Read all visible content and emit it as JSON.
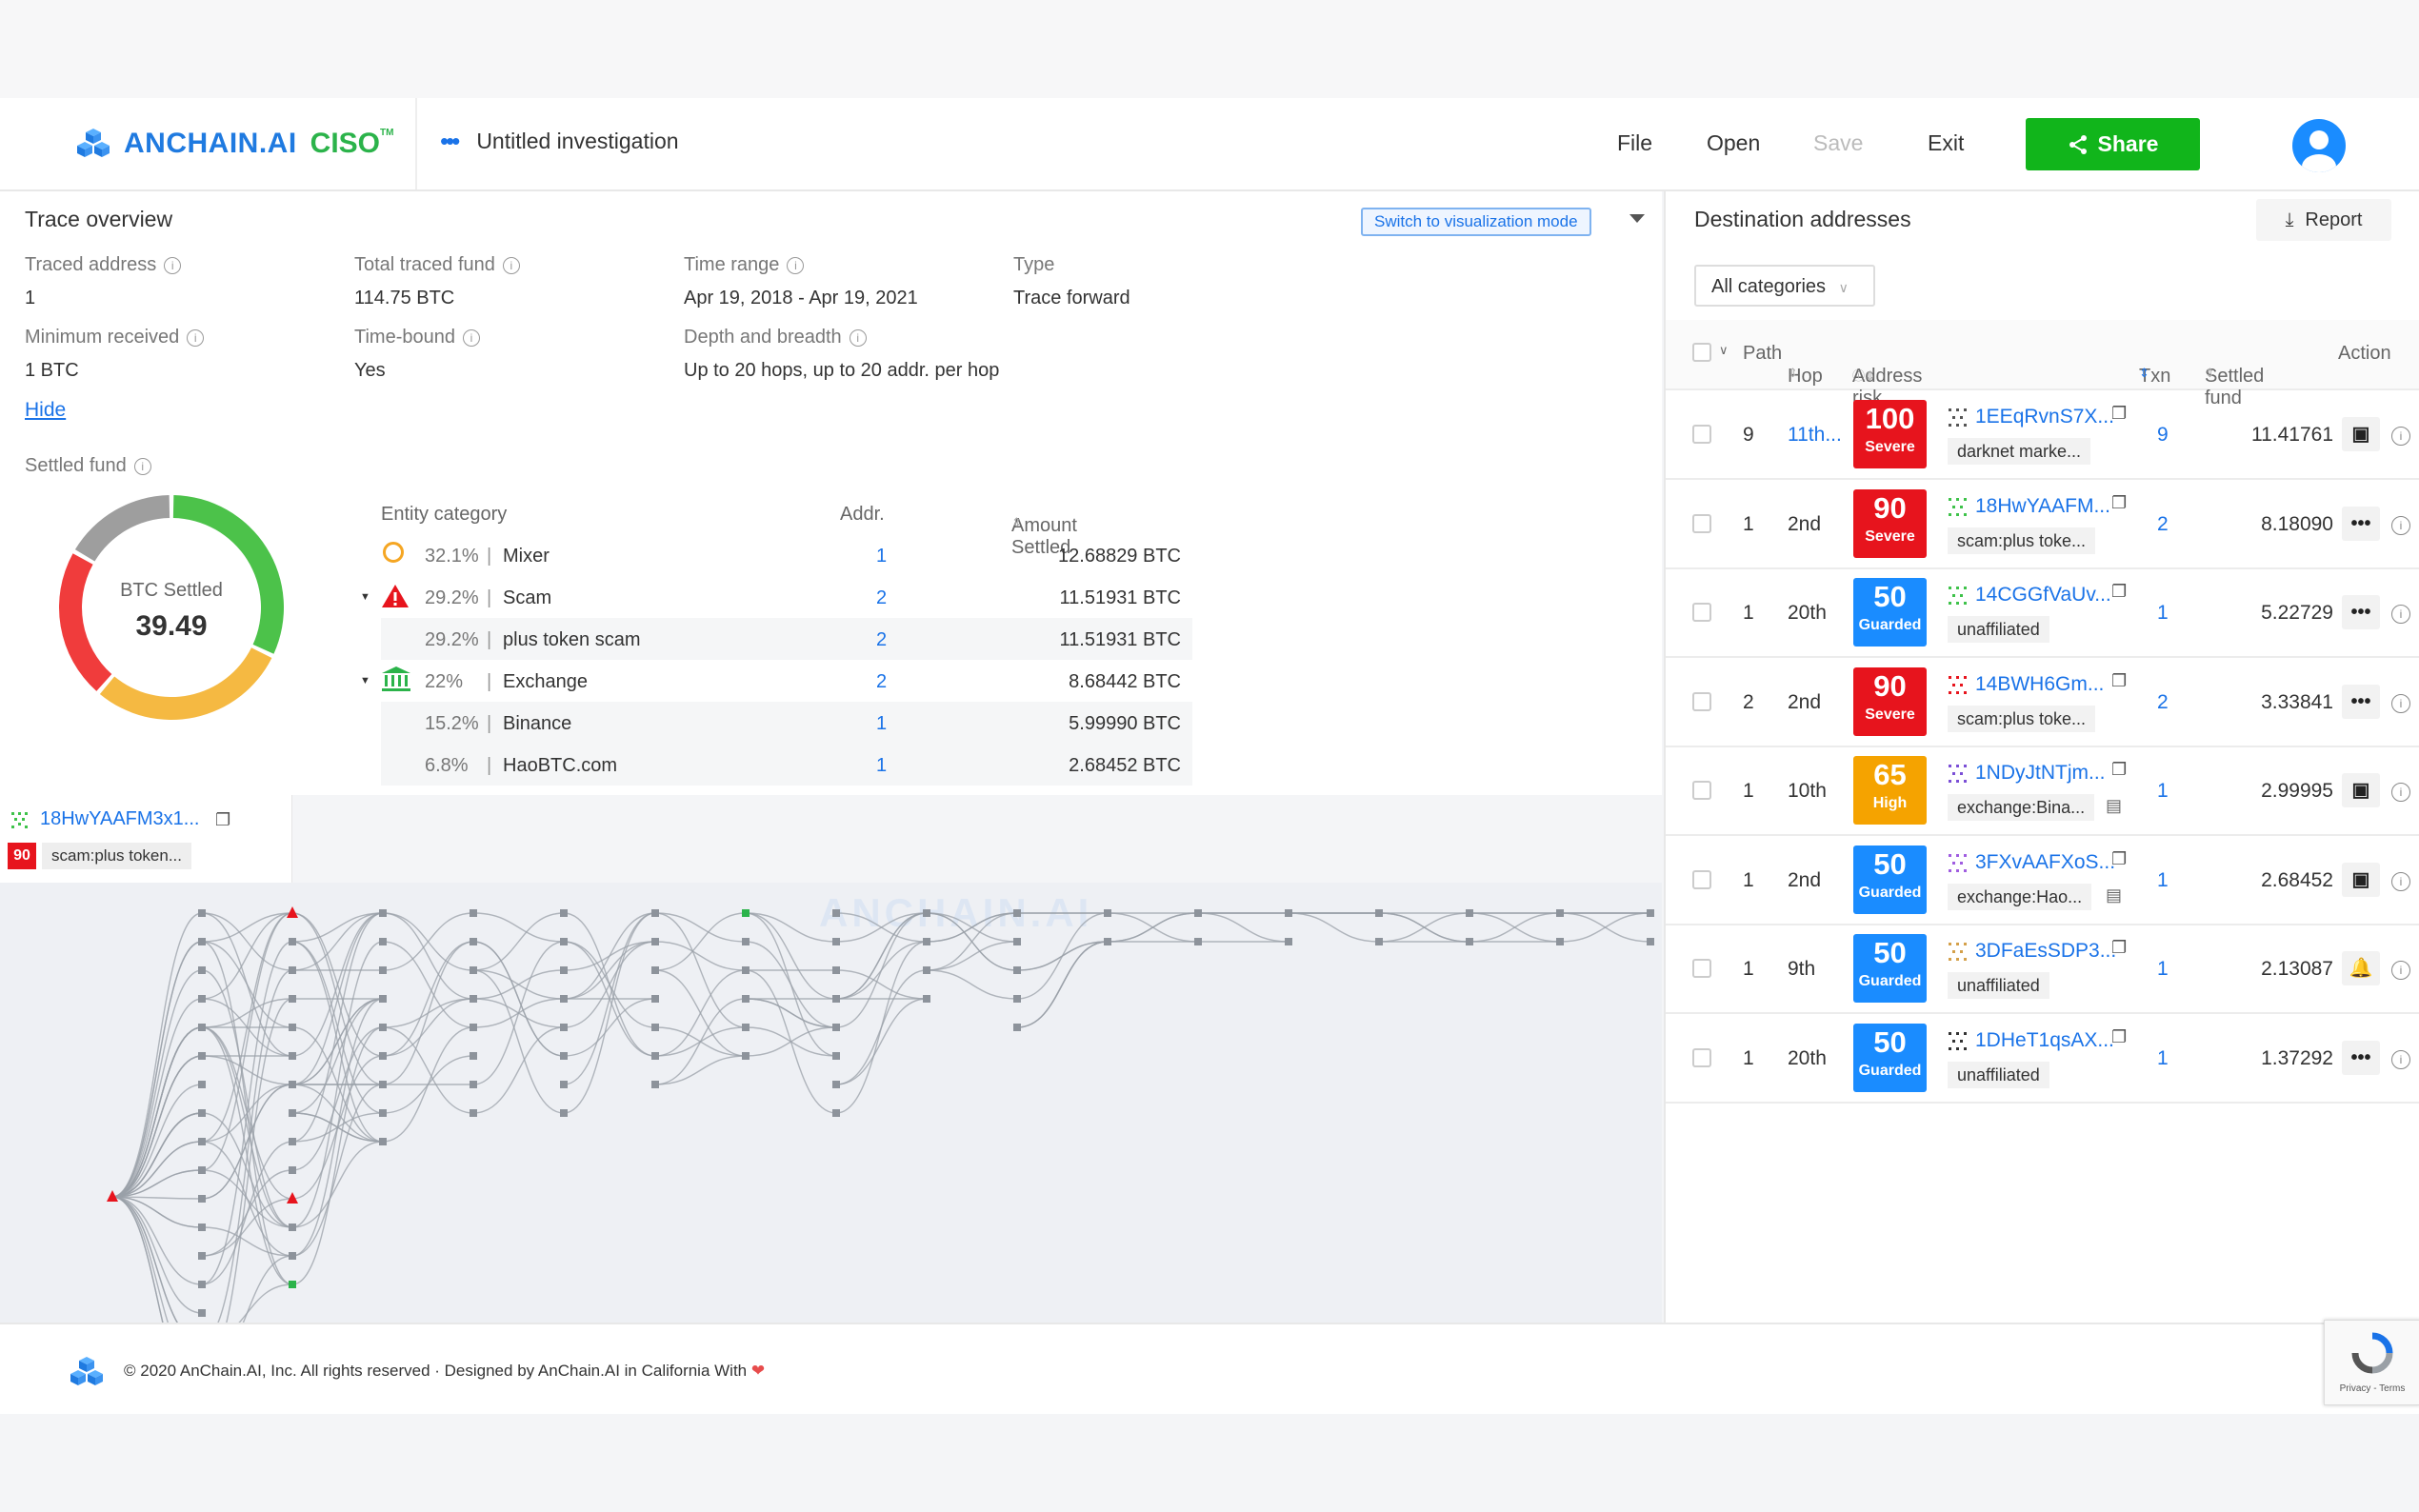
{
  "header": {
    "brand": "ANCHAIN.AI",
    "product": "CISO",
    "tm": "TM",
    "investigation_title": "Untitled investigation",
    "menu": [
      "File",
      "Open",
      "Save",
      "Exit"
    ],
    "share_label": "Share"
  },
  "trace_overview": {
    "title": "Trace overview",
    "switch_label": "Switch to visualization mode",
    "fields": [
      {
        "label": "Traced address",
        "value": "1"
      },
      {
        "label": "Total traced fund",
        "value": "114.75 BTC"
      },
      {
        "label": "Time range",
        "value": "Apr 19, 2018 - Apr 19, 2021"
      },
      {
        "label": "Type",
        "value": "Trace forward"
      },
      {
        "label": "Minimum received",
        "value": "1 BTC"
      },
      {
        "label": "Time-bound",
        "value": "Yes"
      },
      {
        "label": "Depth and breadth",
        "value": "Up to 20 hops, up to 20 addr. per hop"
      }
    ],
    "hide_label": "Hide",
    "settled_fund_label": "Settled fund",
    "donut": {
      "label": "BTC Settled",
      "value": "39.49"
    }
  },
  "entity_table": {
    "headers": [
      "Entity category",
      "Addr.",
      "Amount Settled"
    ],
    "rows": [
      {
        "pct": "32.1%",
        "name": "Mixer",
        "addr": "1",
        "amount": "12.68829 BTC",
        "sub": false
      },
      {
        "pct": "29.2%",
        "name": "Scam",
        "addr": "2",
        "amount": "11.51931 BTC",
        "sub": false
      },
      {
        "pct": "29.2%",
        "name": "plus token scam",
        "addr": "2",
        "amount": "11.51931 BTC",
        "sub": true
      },
      {
        "pct": "22%",
        "name": "Exchange",
        "addr": "2",
        "amount": "8.68442 BTC",
        "sub": false
      },
      {
        "pct": "15.2%",
        "name": "Binance",
        "addr": "1",
        "amount": "5.99990 BTC",
        "sub": true
      },
      {
        "pct": "6.8%",
        "name": "HaoBTC.com",
        "addr": "1",
        "amount": "2.68452 BTC",
        "sub": true
      }
    ]
  },
  "selected_node": {
    "address": "18HwYAAFM3x1...",
    "score": "90",
    "tag": "scam:plus token..."
  },
  "graph": {
    "watermark": "ANCHAIN.AI"
  },
  "destination": {
    "title": "Destination addresses",
    "report_label": "Report",
    "category_select": "All categories",
    "headers": {
      "path": "Path",
      "hop": "Hop",
      "risk": "Address risk profile",
      "txn": "Txn",
      "settled": "Settled fund",
      "action": "Action"
    },
    "rows": [
      {
        "path": "9",
        "hop": "11th...",
        "score": "100",
        "level": "Severe",
        "address": "1EEqRvnS7X...",
        "tag": "darknet marke...",
        "txn": "9",
        "settled": "11.41761",
        "action": "badge"
      },
      {
        "path": "1",
        "hop": "2nd",
        "score": "90",
        "level": "Severe",
        "address": "18HwYAAFM...",
        "tag": "scam:plus toke...",
        "txn": "2",
        "settled": "8.18090",
        "action": "more"
      },
      {
        "path": "1",
        "hop": "20th",
        "score": "50",
        "level": "Guarded",
        "address": "14CGGfVaUv...",
        "tag": "unaffiliated",
        "txn": "1",
        "settled": "5.22729",
        "action": "more"
      },
      {
        "path": "2",
        "hop": "2nd",
        "score": "90",
        "level": "Severe",
        "address": "14BWH6Gm...",
        "tag": "scam:plus toke...",
        "txn": "2",
        "settled": "3.33841",
        "action": "more"
      },
      {
        "path": "1",
        "hop": "10th",
        "score": "65",
        "level": "High",
        "address": "1NDyJtNTjm...",
        "tag": "exchange:Bina...",
        "txn": "1",
        "settled": "2.99995",
        "action": "badge"
      },
      {
        "path": "1",
        "hop": "2nd",
        "score": "50",
        "level": "Guarded",
        "address": "3FXvAAFXoS...",
        "tag": "exchange:Hao...",
        "txn": "1",
        "settled": "2.68452",
        "action": "badge"
      },
      {
        "path": "1",
        "hop": "9th",
        "score": "50",
        "level": "Guarded",
        "address": "3DFaEsSDP3...",
        "tag": "unaffiliated",
        "txn": "1",
        "settled": "2.13087",
        "action": "bell"
      },
      {
        "path": "1",
        "hop": "20th",
        "score": "50",
        "level": "Guarded",
        "address": "1DHeT1qsAX...",
        "tag": "unaffiliated",
        "txn": "1",
        "settled": "1.37292",
        "action": "more"
      }
    ]
  },
  "footer": {
    "text": "© 2020 AnChain.AI, Inc. All rights reserved · Designed by AnChain.AI in California With"
  },
  "recaptcha": {
    "text": "Privacy - Terms"
  },
  "colors": {
    "severe": "#e7141d",
    "high": "#f5a300",
    "guarded": "#1a8cff",
    "share": "#11b51b",
    "mixer": "#4cc24a",
    "scam": "#f5b942",
    "exchange": "#f03c3c",
    "other": "#9e9e9e"
  }
}
